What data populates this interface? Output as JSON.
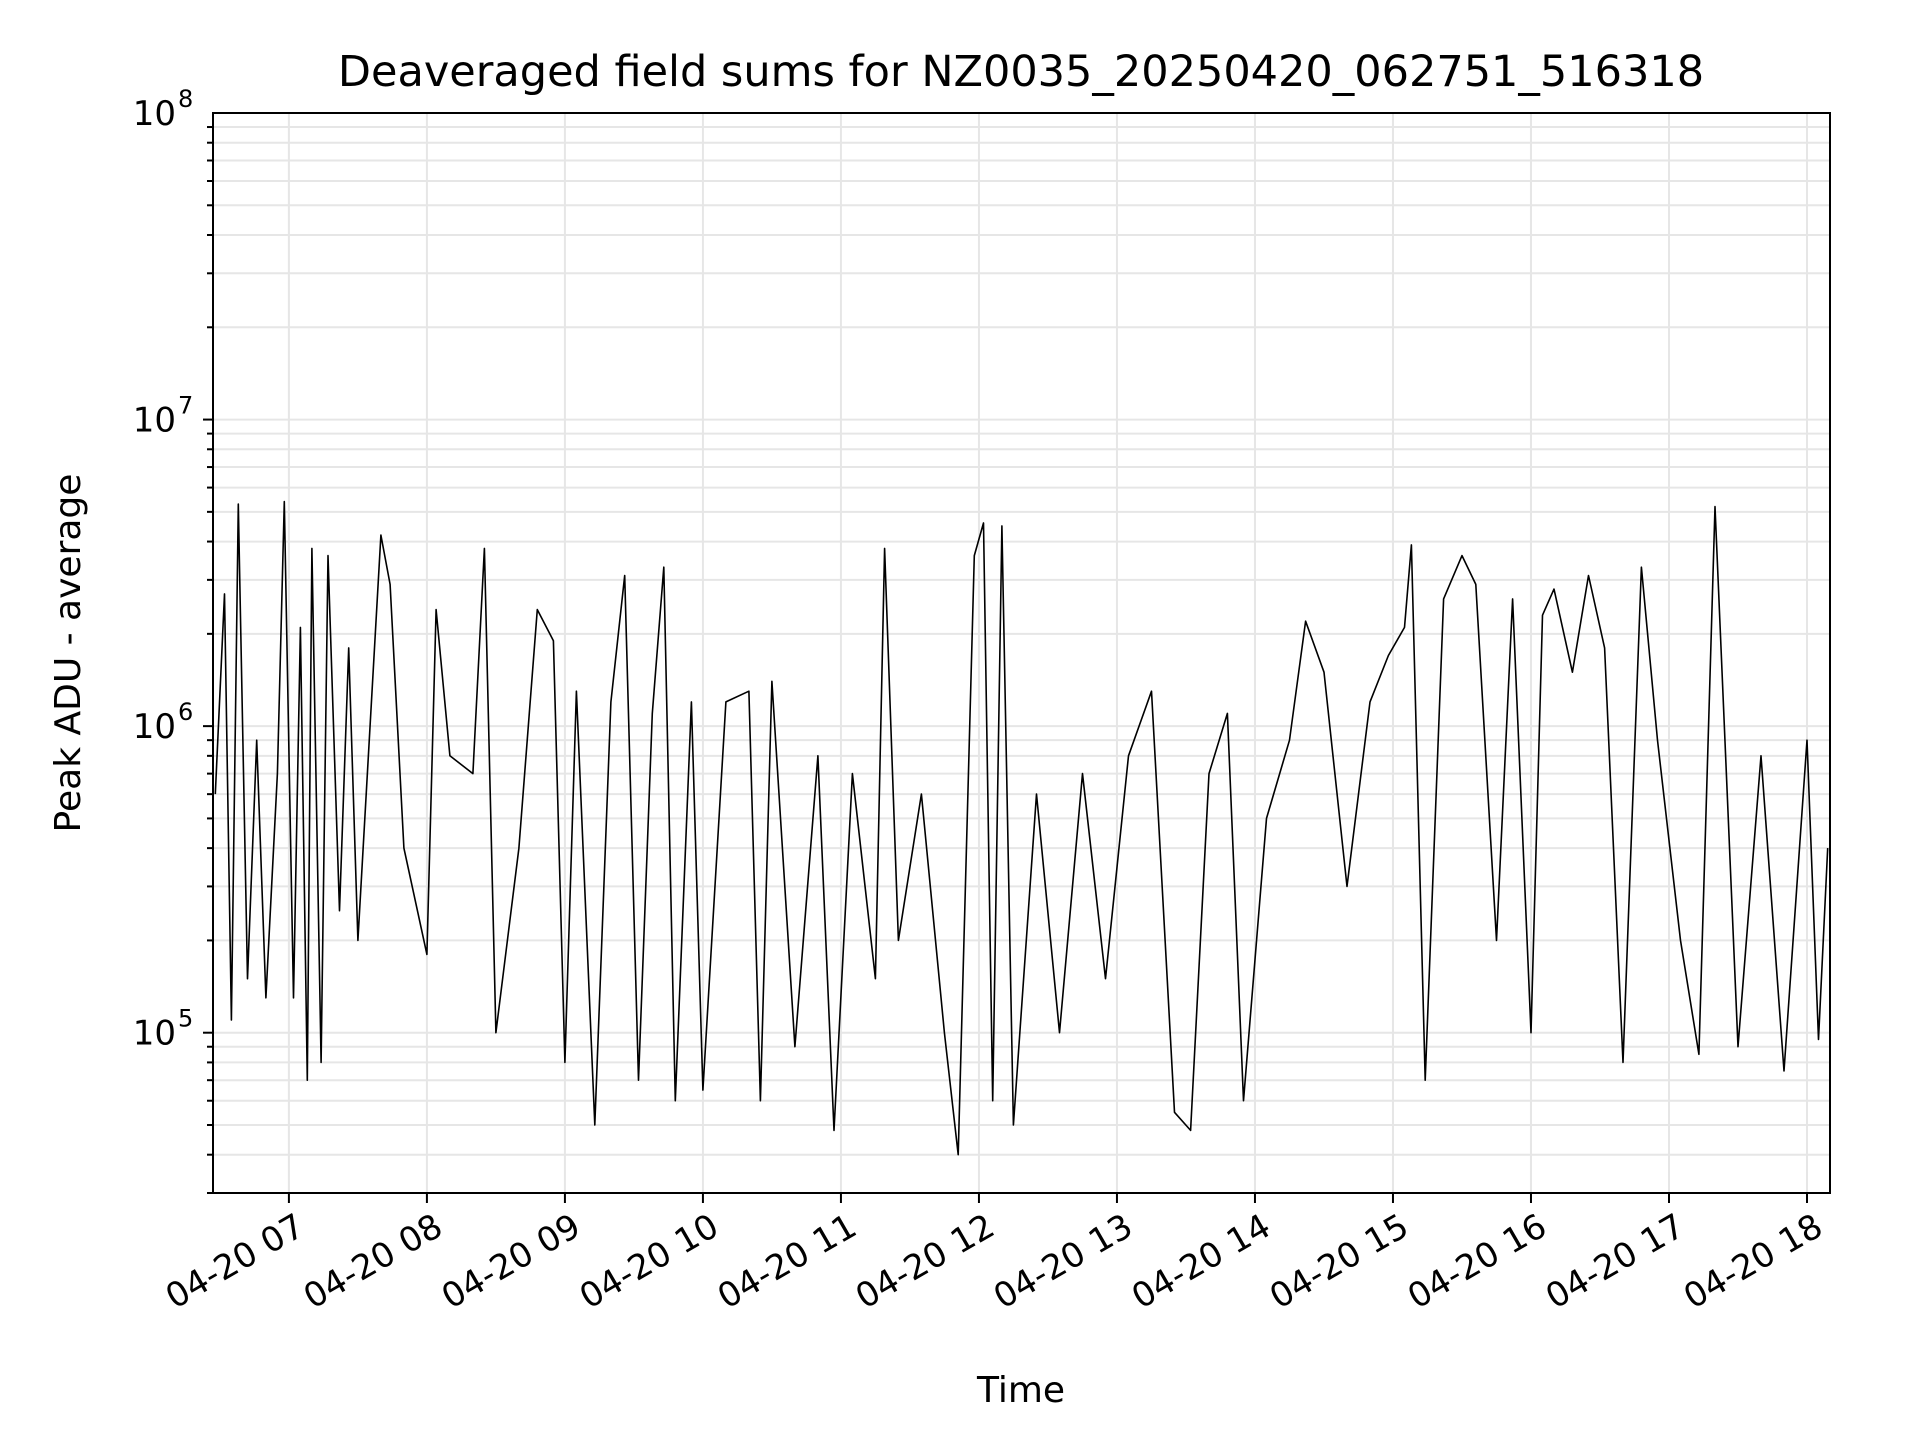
{
  "chart_data": {
    "type": "line",
    "title": "Deaveraged field sums for NZ0035_20250420_062751_516318",
    "xlabel": "Time",
    "ylabel": "Peak ADU - average",
    "yscale": "log",
    "xlim": [
      "2025-04-20 06:27",
      "2025-04-20 18:10"
    ],
    "ylim": [
      30000,
      100000000
    ],
    "grid": true,
    "line_color": "#000000",
    "x_ticks": [
      {
        "time": "2025-04-20 07:00",
        "label": "04-20 07"
      },
      {
        "time": "2025-04-20 08:00",
        "label": "04-20 08"
      },
      {
        "time": "2025-04-20 09:00",
        "label": "04-20 09"
      },
      {
        "time": "2025-04-20 10:00",
        "label": "04-20 10"
      },
      {
        "time": "2025-04-20 11:00",
        "label": "04-20 11"
      },
      {
        "time": "2025-04-20 12:00",
        "label": "04-20 12"
      },
      {
        "time": "2025-04-20 13:00",
        "label": "04-20 13"
      },
      {
        "time": "2025-04-20 14:00",
        "label": "04-20 14"
      },
      {
        "time": "2025-04-20 15:00",
        "label": "04-20 15"
      },
      {
        "time": "2025-04-20 16:00",
        "label": "04-20 16"
      },
      {
        "time": "2025-04-20 17:00",
        "label": "04-20 17"
      },
      {
        "time": "2025-04-20 18:00",
        "label": "04-20 18"
      }
    ],
    "y_ticks": [
      {
        "value": 100000,
        "base": "10",
        "exp": "5"
      },
      {
        "value": 1000000,
        "base": "10",
        "exp": "6"
      },
      {
        "value": 10000000,
        "base": "10",
        "exp": "7"
      },
      {
        "value": 100000000,
        "base": "10",
        "exp": "8"
      }
    ],
    "series": [
      {
        "points": [
          [
            "2025-04-20 06:28",
            600000
          ],
          [
            "2025-04-20 06:32",
            2700000
          ],
          [
            "2025-04-20 06:35",
            110000
          ],
          [
            "2025-04-20 06:38",
            5300000
          ],
          [
            "2025-04-20 06:42",
            150000
          ],
          [
            "2025-04-20 06:46",
            900000
          ],
          [
            "2025-04-20 06:50",
            130000
          ],
          [
            "2025-04-20 06:55",
            700000
          ],
          [
            "2025-04-20 06:58",
            5400000
          ],
          [
            "2025-04-20 07:02",
            130000
          ],
          [
            "2025-04-20 07:05",
            2100000
          ],
          [
            "2025-04-20 07:08",
            70000
          ],
          [
            "2025-04-20 07:10",
            3800000
          ],
          [
            "2025-04-20 07:14",
            80000
          ],
          [
            "2025-04-20 07:17",
            3600000
          ],
          [
            "2025-04-20 07:22",
            250000
          ],
          [
            "2025-04-20 07:26",
            1800000
          ],
          [
            "2025-04-20 07:30",
            200000
          ],
          [
            "2025-04-20 07:40",
            4200000
          ],
          [
            "2025-04-20 07:44",
            2900000
          ],
          [
            "2025-04-20 07:50",
            400000
          ],
          [
            "2025-04-20 08:00",
            180000
          ],
          [
            "2025-04-20 08:04",
            2400000
          ],
          [
            "2025-04-20 08:10",
            800000
          ],
          [
            "2025-04-20 08:20",
            700000
          ],
          [
            "2025-04-20 08:25",
            3800000
          ],
          [
            "2025-04-20 08:30",
            100000
          ],
          [
            "2025-04-20 08:40",
            400000
          ],
          [
            "2025-04-20 08:48",
            2400000
          ],
          [
            "2025-04-20 08:55",
            1900000
          ],
          [
            "2025-04-20 09:00",
            80000
          ],
          [
            "2025-04-20 09:05",
            1300000
          ],
          [
            "2025-04-20 09:13",
            50000
          ],
          [
            "2025-04-20 09:20",
            1200000
          ],
          [
            "2025-04-20 09:26",
            3100000
          ],
          [
            "2025-04-20 09:32",
            70000
          ],
          [
            "2025-04-20 09:38",
            1100000
          ],
          [
            "2025-04-20 09:43",
            3300000
          ],
          [
            "2025-04-20 09:48",
            60000
          ],
          [
            "2025-04-20 09:55",
            1200000
          ],
          [
            "2025-04-20 10:00",
            65000
          ],
          [
            "2025-04-20 10:10",
            1200000
          ],
          [
            "2025-04-20 10:20",
            1300000
          ],
          [
            "2025-04-20 10:25",
            60000
          ],
          [
            "2025-04-20 10:30",
            1400000
          ],
          [
            "2025-04-20 10:40",
            90000
          ],
          [
            "2025-04-20 10:50",
            800000
          ],
          [
            "2025-04-20 10:57",
            48000
          ],
          [
            "2025-04-20 11:05",
            700000
          ],
          [
            "2025-04-20 11:15",
            150000
          ],
          [
            "2025-04-20 11:19",
            3800000
          ],
          [
            "2025-04-20 11:25",
            200000
          ],
          [
            "2025-04-20 11:35",
            600000
          ],
          [
            "2025-04-20 11:45",
            100000
          ],
          [
            "2025-04-20 11:51",
            40000
          ],
          [
            "2025-04-20 11:58",
            3600000
          ],
          [
            "2025-04-20 12:02",
            4600000
          ],
          [
            "2025-04-20 12:06",
            60000
          ],
          [
            "2025-04-20 12:10",
            4500000
          ],
          [
            "2025-04-20 12:15",
            50000
          ],
          [
            "2025-04-20 12:25",
            600000
          ],
          [
            "2025-04-20 12:35",
            100000
          ],
          [
            "2025-04-20 12:45",
            700000
          ],
          [
            "2025-04-20 12:55",
            150000
          ],
          [
            "2025-04-20 13:05",
            800000
          ],
          [
            "2025-04-20 13:15",
            1300000
          ],
          [
            "2025-04-20 13:25",
            55000
          ],
          [
            "2025-04-20 13:32",
            48000
          ],
          [
            "2025-04-20 13:40",
            700000
          ],
          [
            "2025-04-20 13:48",
            1100000
          ],
          [
            "2025-04-20 13:55",
            60000
          ],
          [
            "2025-04-20 14:05",
            500000
          ],
          [
            "2025-04-20 14:15",
            900000
          ],
          [
            "2025-04-20 14:22",
            2200000
          ],
          [
            "2025-04-20 14:30",
            1500000
          ],
          [
            "2025-04-20 14:40",
            300000
          ],
          [
            "2025-04-20 14:50",
            1200000
          ],
          [
            "2025-04-20 14:58",
            1700000
          ],
          [
            "2025-04-20 15:05",
            2100000
          ],
          [
            "2025-04-20 15:08",
            3900000
          ],
          [
            "2025-04-20 15:14",
            70000
          ],
          [
            "2025-04-20 15:22",
            2600000
          ],
          [
            "2025-04-20 15:30",
            3600000
          ],
          [
            "2025-04-20 15:36",
            2900000
          ],
          [
            "2025-04-20 15:45",
            200000
          ],
          [
            "2025-04-20 15:52",
            2600000
          ],
          [
            "2025-04-20 16:00",
            100000
          ],
          [
            "2025-04-20 16:05",
            2300000
          ],
          [
            "2025-04-20 16:10",
            2800000
          ],
          [
            "2025-04-20 16:18",
            1500000
          ],
          [
            "2025-04-20 16:25",
            3100000
          ],
          [
            "2025-04-20 16:32",
            1800000
          ],
          [
            "2025-04-20 16:40",
            80000
          ],
          [
            "2025-04-20 16:48",
            3300000
          ],
          [
            "2025-04-20 16:55",
            900000
          ],
          [
            "2025-04-20 17:05",
            200000
          ],
          [
            "2025-04-20 17:13",
            85000
          ],
          [
            "2025-04-20 17:20",
            5200000
          ],
          [
            "2025-04-20 17:30",
            90000
          ],
          [
            "2025-04-20 17:40",
            800000
          ],
          [
            "2025-04-20 17:50",
            75000
          ],
          [
            "2025-04-20 18:00",
            900000
          ],
          [
            "2025-04-20 18:05",
            95000
          ],
          [
            "2025-04-20 18:09",
            400000
          ]
        ]
      }
    ]
  }
}
